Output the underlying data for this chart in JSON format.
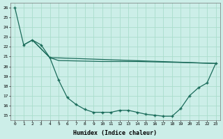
{
  "xlabel": "Humidex (Indice chaleur)",
  "bg_color": "#cceee8",
  "line_color": "#1a6b5a",
  "grid_color": "#aaddcc",
  "xlim": [
    -0.5,
    23.5
  ],
  "ylim": [
    14.5,
    26.5
  ],
  "yticks": [
    15,
    16,
    17,
    18,
    19,
    20,
    21,
    22,
    23,
    24,
    25,
    26
  ],
  "xticks": [
    0,
    1,
    2,
    3,
    4,
    5,
    6,
    7,
    8,
    9,
    10,
    11,
    12,
    13,
    14,
    15,
    16,
    17,
    18,
    19,
    20,
    21,
    22,
    23
  ],
  "line1_x": [
    0,
    1,
    2,
    3,
    4,
    5,
    6,
    7,
    8,
    9,
    10,
    11,
    12,
    13,
    14,
    15,
    16,
    17,
    18,
    19,
    20,
    21,
    22,
    23
  ],
  "line1_y": [
    26.0,
    22.2,
    22.7,
    22.2,
    20.9,
    18.6,
    16.8,
    16.1,
    15.6,
    15.3,
    15.3,
    15.3,
    15.5,
    15.5,
    15.3,
    15.1,
    15.0,
    14.9,
    14.9,
    15.7,
    17.0,
    17.8,
    18.3,
    20.3
  ],
  "line2_x": [
    1,
    2,
    4,
    23
  ],
  "line2_y": [
    22.2,
    22.7,
    20.9,
    20.3
  ],
  "line3_x": [
    2,
    4,
    5,
    10,
    14,
    19,
    23
  ],
  "line3_y": [
    22.7,
    20.9,
    20.6,
    20.5,
    20.5,
    20.4,
    20.3
  ]
}
